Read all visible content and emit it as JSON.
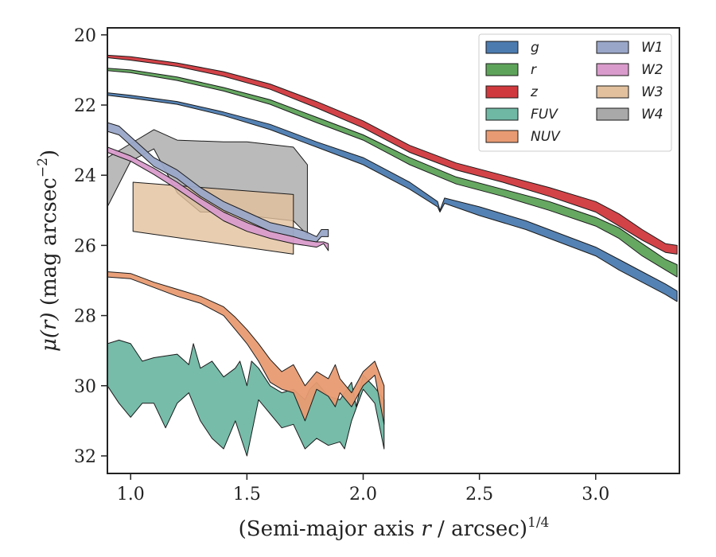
{
  "chart_data": {
    "type": "area",
    "xlabel": "(Semi-major axis r / arcsec)1/4",
    "xlabel_parts": {
      "pre": "(Semi-major axis ",
      "var": "r",
      "mid": " / arcsec)",
      "sup": "1/4"
    },
    "ylabel": "μ(r) (mag arcsec−2)",
    "ylabel_parts": {
      "var": "μ(r)",
      "mid": " (mag arcsec",
      "sup": "−2",
      "post": ")"
    },
    "xlim": [
      0.9,
      3.36
    ],
    "ylim": [
      32.5,
      19.8
    ],
    "y_inverted": true,
    "xticks": [
      1.0,
      1.5,
      2.0,
      2.5,
      3.0
    ],
    "xtick_labels": [
      "1.0",
      "1.5",
      "2.0",
      "2.5",
      "3.0"
    ],
    "yticks": [
      20,
      22,
      24,
      26,
      28,
      30,
      32
    ],
    "ytick_labels": [
      "20",
      "22",
      "24",
      "26",
      "28",
      "30",
      "32"
    ],
    "grid": false,
    "legend": {
      "placement": "top-right",
      "columns": 2
    },
    "series": [
      {
        "name": "g",
        "color": "#4c7bb0",
        "upper": [
          [
            0.9,
            21.65
          ],
          [
            1.0,
            21.72
          ],
          [
            1.2,
            21.9
          ],
          [
            1.4,
            22.2
          ],
          [
            1.6,
            22.55
          ],
          [
            1.8,
            23.05
          ],
          [
            2.0,
            23.5
          ],
          [
            2.2,
            24.2
          ],
          [
            2.32,
            24.75
          ],
          [
            2.33,
            25.0
          ],
          [
            2.35,
            24.65
          ],
          [
            2.5,
            24.9
          ],
          [
            2.7,
            25.3
          ],
          [
            2.9,
            25.8
          ],
          [
            3.0,
            26.05
          ],
          [
            3.1,
            26.4
          ],
          [
            3.2,
            26.75
          ],
          [
            3.3,
            27.1
          ],
          [
            3.35,
            27.3
          ]
        ],
        "lower": [
          [
            0.9,
            21.72
          ],
          [
            1.0,
            21.8
          ],
          [
            1.2,
            21.98
          ],
          [
            1.4,
            22.3
          ],
          [
            1.6,
            22.7
          ],
          [
            1.8,
            23.2
          ],
          [
            2.0,
            23.7
          ],
          [
            2.2,
            24.4
          ],
          [
            2.32,
            24.9
          ],
          [
            2.33,
            25.05
          ],
          [
            2.35,
            24.8
          ],
          [
            2.5,
            25.15
          ],
          [
            2.7,
            25.55
          ],
          [
            2.9,
            26.05
          ],
          [
            3.0,
            26.3
          ],
          [
            3.1,
            26.7
          ],
          [
            3.2,
            27.05
          ],
          [
            3.3,
            27.4
          ],
          [
            3.35,
            27.6
          ]
        ]
      },
      {
        "name": "r",
        "color": "#5ea35a",
        "upper": [
          [
            0.9,
            20.95
          ],
          [
            1.0,
            21.0
          ],
          [
            1.2,
            21.2
          ],
          [
            1.4,
            21.5
          ],
          [
            1.6,
            21.85
          ],
          [
            1.8,
            22.35
          ],
          [
            2.0,
            22.85
          ],
          [
            2.2,
            23.5
          ],
          [
            2.4,
            24.05
          ],
          [
            2.6,
            24.4
          ],
          [
            2.8,
            24.75
          ],
          [
            3.0,
            25.2
          ],
          [
            3.1,
            25.5
          ],
          [
            3.2,
            25.95
          ],
          [
            3.3,
            26.4
          ],
          [
            3.35,
            26.55
          ]
        ],
        "lower": [
          [
            0.9,
            21.02
          ],
          [
            1.0,
            21.08
          ],
          [
            1.2,
            21.3
          ],
          [
            1.4,
            21.6
          ],
          [
            1.6,
            21.98
          ],
          [
            1.8,
            22.5
          ],
          [
            2.0,
            23.0
          ],
          [
            2.2,
            23.7
          ],
          [
            2.4,
            24.25
          ],
          [
            2.6,
            24.6
          ],
          [
            2.8,
            25.0
          ],
          [
            3.0,
            25.45
          ],
          [
            3.1,
            25.8
          ],
          [
            3.2,
            26.3
          ],
          [
            3.3,
            26.7
          ],
          [
            3.35,
            26.9
          ]
        ]
      },
      {
        "name": "z",
        "color": "#d0393e",
        "upper": [
          [
            0.9,
            20.58
          ],
          [
            1.0,
            20.62
          ],
          [
            1.2,
            20.8
          ],
          [
            1.4,
            21.05
          ],
          [
            1.6,
            21.4
          ],
          [
            1.8,
            21.9
          ],
          [
            2.0,
            22.45
          ],
          [
            2.2,
            23.15
          ],
          [
            2.4,
            23.65
          ],
          [
            2.6,
            24.0
          ],
          [
            2.8,
            24.35
          ],
          [
            3.0,
            24.75
          ],
          [
            3.1,
            25.1
          ],
          [
            3.2,
            25.55
          ],
          [
            3.3,
            25.95
          ],
          [
            3.35,
            26.0
          ]
        ],
        "lower": [
          [
            0.9,
            20.65
          ],
          [
            1.0,
            20.72
          ],
          [
            1.2,
            20.9
          ],
          [
            1.4,
            21.18
          ],
          [
            1.6,
            21.55
          ],
          [
            1.8,
            22.08
          ],
          [
            2.0,
            22.65
          ],
          [
            2.2,
            23.35
          ],
          [
            2.4,
            23.85
          ],
          [
            2.6,
            24.2
          ],
          [
            2.8,
            24.6
          ],
          [
            3.0,
            25.05
          ],
          [
            3.1,
            25.45
          ],
          [
            3.2,
            25.85
          ],
          [
            3.3,
            26.2
          ],
          [
            3.35,
            26.25
          ]
        ]
      },
      {
        "name": "FUV",
        "color": "#6fb8a4",
        "upper": [
          [
            0.9,
            28.8
          ],
          [
            0.95,
            28.7
          ],
          [
            1.0,
            28.8
          ],
          [
            1.05,
            29.3
          ],
          [
            1.1,
            29.2
          ],
          [
            1.2,
            29.1
          ],
          [
            1.25,
            29.4
          ],
          [
            1.27,
            28.8
          ],
          [
            1.3,
            29.5
          ],
          [
            1.35,
            29.3
          ],
          [
            1.4,
            29.75
          ],
          [
            1.45,
            29.5
          ],
          [
            1.47,
            29.3
          ],
          [
            1.5,
            30.0
          ],
          [
            1.52,
            29.3
          ],
          [
            1.55,
            29.5
          ],
          [
            1.6,
            30.0
          ],
          [
            1.65,
            30.2
          ],
          [
            1.7,
            30.1
          ],
          [
            1.75,
            30.4
          ],
          [
            1.77,
            30.1
          ],
          [
            1.8,
            29.9
          ],
          [
            1.85,
            30.3
          ],
          [
            1.9,
            30.4
          ],
          [
            1.95,
            29.9
          ],
          [
            1.97,
            30.6
          ],
          [
            2.0,
            29.7
          ],
          [
            2.05,
            30.05
          ],
          [
            2.09,
            30.4
          ]
        ],
        "lower": [
          [
            0.9,
            30.0
          ],
          [
            0.95,
            30.5
          ],
          [
            1.0,
            30.9
          ],
          [
            1.05,
            30.5
          ],
          [
            1.1,
            30.5
          ],
          [
            1.15,
            31.2
          ],
          [
            1.2,
            30.5
          ],
          [
            1.25,
            30.2
          ],
          [
            1.3,
            31.0
          ],
          [
            1.35,
            31.5
          ],
          [
            1.4,
            31.8
          ],
          [
            1.45,
            31.0
          ],
          [
            1.5,
            32.0
          ],
          [
            1.55,
            30.4
          ],
          [
            1.6,
            30.8
          ],
          [
            1.65,
            31.2
          ],
          [
            1.7,
            31.1
          ],
          [
            1.75,
            31.8
          ],
          [
            1.8,
            31.5
          ],
          [
            1.85,
            31.7
          ],
          [
            1.9,
            31.6
          ],
          [
            1.92,
            31.8
          ],
          [
            1.95,
            31.0
          ],
          [
            2.0,
            30.1
          ],
          [
            2.05,
            30.5
          ],
          [
            2.09,
            31.8
          ]
        ]
      },
      {
        "name": "NUV",
        "color": "#e89b72",
        "upper": [
          [
            0.9,
            26.75
          ],
          [
            1.0,
            26.8
          ],
          [
            1.1,
            27.05
          ],
          [
            1.2,
            27.25
          ],
          [
            1.3,
            27.45
          ],
          [
            1.4,
            27.75
          ],
          [
            1.45,
            28.05
          ],
          [
            1.5,
            28.4
          ],
          [
            1.55,
            28.8
          ],
          [
            1.6,
            29.25
          ],
          [
            1.65,
            29.6
          ],
          [
            1.7,
            29.4
          ],
          [
            1.75,
            30.0
          ],
          [
            1.8,
            29.6
          ],
          [
            1.85,
            29.8
          ],
          [
            1.88,
            29.4
          ],
          [
            1.9,
            29.8
          ],
          [
            1.95,
            30.2
          ],
          [
            2.0,
            29.6
          ],
          [
            2.05,
            29.3
          ],
          [
            2.09,
            30.0
          ]
        ],
        "lower": [
          [
            0.9,
            26.9
          ],
          [
            1.0,
            26.95
          ],
          [
            1.1,
            27.2
          ],
          [
            1.2,
            27.45
          ],
          [
            1.3,
            27.65
          ],
          [
            1.4,
            28.0
          ],
          [
            1.45,
            28.4
          ],
          [
            1.5,
            28.8
          ],
          [
            1.55,
            29.3
          ],
          [
            1.6,
            29.9
          ],
          [
            1.65,
            30.1
          ],
          [
            1.7,
            30.2
          ],
          [
            1.75,
            31.0
          ],
          [
            1.8,
            30.1
          ],
          [
            1.85,
            30.3
          ],
          [
            1.88,
            30.6
          ],
          [
            1.9,
            30.2
          ],
          [
            1.95,
            30.6
          ],
          [
            2.0,
            30.0
          ],
          [
            2.05,
            29.7
          ],
          [
            2.09,
            31.1
          ]
        ]
      },
      {
        "name": "W1",
        "color": "#9aa6c8",
        "upper": [
          [
            0.9,
            22.5
          ],
          [
            0.95,
            22.6
          ],
          [
            1.0,
            22.9
          ],
          [
            1.05,
            23.2
          ],
          [
            1.1,
            23.5
          ],
          [
            1.2,
            23.85
          ],
          [
            1.3,
            24.35
          ],
          [
            1.4,
            24.75
          ],
          [
            1.5,
            25.05
          ],
          [
            1.6,
            25.35
          ],
          [
            1.7,
            25.5
          ],
          [
            1.75,
            25.6
          ],
          [
            1.8,
            25.75
          ],
          [
            1.82,
            25.55
          ],
          [
            1.85,
            25.55
          ]
        ],
        "lower": [
          [
            0.9,
            22.75
          ],
          [
            0.95,
            22.85
          ],
          [
            1.0,
            23.15
          ],
          [
            1.05,
            23.45
          ],
          [
            1.1,
            23.75
          ],
          [
            1.2,
            24.1
          ],
          [
            1.3,
            24.6
          ],
          [
            1.4,
            25.0
          ],
          [
            1.5,
            25.3
          ],
          [
            1.6,
            25.6
          ],
          [
            1.7,
            25.75
          ],
          [
            1.75,
            25.85
          ],
          [
            1.8,
            25.9
          ],
          [
            1.82,
            25.75
          ],
          [
            1.85,
            25.75
          ]
        ]
      },
      {
        "name": "W2",
        "color": "#d99bcb",
        "upper": [
          [
            0.9,
            23.2
          ],
          [
            1.0,
            23.45
          ],
          [
            1.1,
            23.8
          ],
          [
            1.2,
            24.2
          ],
          [
            1.3,
            24.65
          ],
          [
            1.4,
            25.05
          ],
          [
            1.5,
            25.35
          ],
          [
            1.6,
            25.6
          ],
          [
            1.7,
            25.75
          ],
          [
            1.8,
            25.9
          ],
          [
            1.83,
            25.9
          ],
          [
            1.85,
            25.95
          ]
        ],
        "lower": [
          [
            0.9,
            23.35
          ],
          [
            1.0,
            23.6
          ],
          [
            1.1,
            23.98
          ],
          [
            1.2,
            24.4
          ],
          [
            1.3,
            24.85
          ],
          [
            1.4,
            25.3
          ],
          [
            1.5,
            25.6
          ],
          [
            1.6,
            25.8
          ],
          [
            1.7,
            25.95
          ],
          [
            1.8,
            26.05
          ],
          [
            1.83,
            25.95
          ],
          [
            1.85,
            26.15
          ]
        ]
      },
      {
        "name": "W3",
        "color": "#e2c09e",
        "upper": [
          [
            1.01,
            24.2
          ],
          [
            1.7,
            24.55
          ]
        ],
        "lower": [
          [
            1.01,
            25.6
          ],
          [
            1.7,
            26.25
          ]
        ]
      },
      {
        "name": "W4",
        "color": "#a9a9a9",
        "upper": [
          [
            0.9,
            23.5
          ],
          [
            1.0,
            23.1
          ],
          [
            1.1,
            22.7
          ],
          [
            1.2,
            23.0
          ],
          [
            1.4,
            23.05
          ],
          [
            1.5,
            23.05
          ],
          [
            1.7,
            23.2
          ],
          [
            1.76,
            23.7
          ]
        ],
        "lower": [
          [
            0.9,
            24.9
          ],
          [
            1.0,
            23.6
          ],
          [
            1.1,
            23.25
          ],
          [
            1.2,
            24.5
          ],
          [
            1.3,
            25.05
          ],
          [
            1.4,
            25.05
          ],
          [
            1.5,
            25.15
          ],
          [
            1.7,
            25.3
          ],
          [
            1.76,
            25.7
          ]
        ]
      }
    ]
  }
}
